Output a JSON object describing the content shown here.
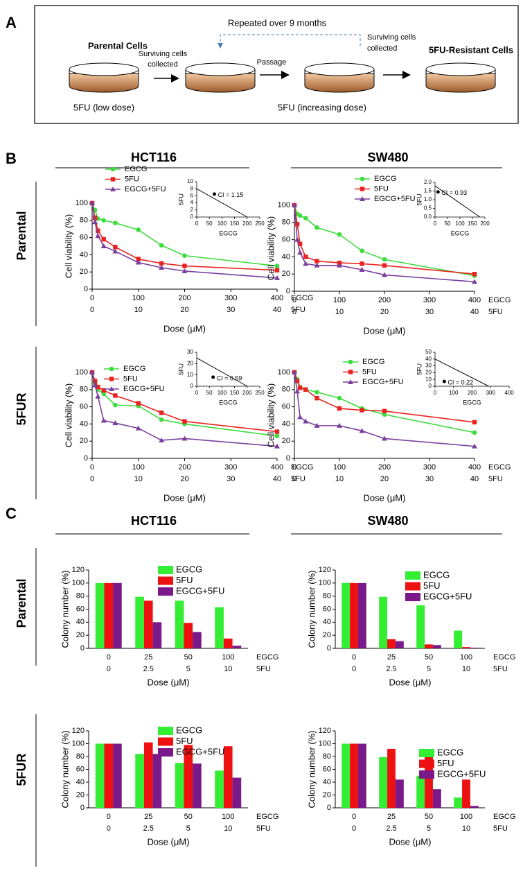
{
  "panel_a": {
    "letter": "A",
    "repeated": "Repeated over 9 months",
    "parental": "Parental Cells",
    "surviving_1a": "Surviving cells",
    "surviving_1b": "collected",
    "surviving_2a": "Surviving cells",
    "surviving_2b": "collected",
    "passage": "Passage",
    "resistant": "5FU-Resistant Cells",
    "low_dose": "5FU (low dose)",
    "increasing_dose": "5FU (increasing dose)"
  },
  "panel_b": {
    "letter": "B",
    "columns": [
      "HCT116",
      "SW480"
    ],
    "rows": [
      "Parental",
      "5FUR"
    ]
  },
  "panel_c": {
    "letter": "C",
    "columns": [
      "HCT116",
      "SW480"
    ],
    "rows": [
      "Parental",
      "5FUR"
    ]
  },
  "chart_data": [
    {
      "type": "line",
      "x_label": "Dose (μM)",
      "y_label": "Cell viability (%)",
      "x_name": "EGCG",
      "x2_name": "5FU",
      "x": [
        0,
        6.25,
        12.5,
        25,
        50,
        100,
        150,
        200,
        400
      ],
      "xlim": [
        0,
        400
      ],
      "xticks": [
        0,
        100,
        200,
        300,
        400
      ],
      "x2lim": [
        0,
        40
      ],
      "x2ticks": [
        0,
        10,
        20,
        30,
        40
      ],
      "ylim": [
        0,
        100
      ],
      "yticks": [
        0,
        20,
        40,
        60,
        80,
        100
      ],
      "series": [
        {
          "name": "EGCG",
          "color": "#3ddc3d",
          "values": [
            100,
            92,
            82,
            80,
            77,
            69,
            51,
            39,
            27
          ]
        },
        {
          "name": "5FU",
          "color": "#e8231f",
          "values": [
            100,
            83,
            68,
            58,
            49,
            35,
            30,
            27,
            22
          ]
        },
        {
          "name": "EGCG+5FU",
          "color": "#7b3f9e",
          "values": [
            100,
            78,
            62,
            50,
            44,
            31,
            25,
            21,
            13
          ]
        }
      ],
      "inset": {
        "type": "scatter",
        "x_label": "EGCG",
        "y_label": "5FU",
        "xlim": [
          0,
          250
        ],
        "xticks": [
          0,
          50,
          100,
          150,
          200,
          250
        ],
        "ylim": [
          0,
          10
        ],
        "yticks": [
          0,
          2,
          4,
          6,
          8,
          10
        ],
        "line": {
          "x": [
            0,
            200
          ],
          "y": [
            8,
            0
          ]
        },
        "x": [
          70
        ],
        "y": [
          6.5
        ],
        "annotation": "CI = 1.15"
      }
    },
    {
      "type": "line",
      "x_label": "Dose (μM)",
      "y_label": "Cell viability (%)",
      "x_name": "EGCG",
      "x2_name": "5FU",
      "x": [
        0,
        6.25,
        12.5,
        25,
        50,
        100,
        150,
        200,
        400
      ],
      "xlim": [
        0,
        400
      ],
      "xticks": [
        0,
        100,
        200,
        300,
        400
      ],
      "x2lim": [
        0,
        40
      ],
      "x2ticks": [
        0,
        10,
        20,
        30,
        40
      ],
      "ylim": [
        0,
        100
      ],
      "yticks": [
        0,
        20,
        40,
        60,
        80,
        100
      ],
      "series": [
        {
          "name": "EGCG",
          "color": "#3ddc3d",
          "values": [
            100,
            90,
            88,
            85,
            74,
            66,
            47,
            37,
            18
          ]
        },
        {
          "name": "5FU",
          "color": "#e8231f",
          "values": [
            100,
            78,
            55,
            40,
            35,
            33,
            32,
            30,
            20
          ]
        },
        {
          "name": "EGCG+5FU",
          "color": "#7b3f9e",
          "values": [
            100,
            60,
            45,
            32,
            30,
            30,
            25,
            19,
            11
          ]
        }
      ],
      "inset": {
        "type": "scatter",
        "x_label": "EGCG",
        "y_label": "5FU",
        "xlim": [
          0,
          200
        ],
        "xticks": [
          0,
          50,
          100,
          150,
          200
        ],
        "ylim": [
          0,
          2
        ],
        "yticks": [
          {
            "value": 0,
            "label": "0.0"
          },
          0.5,
          {
            "value": 1,
            "label": "1.0"
          },
          1.5,
          {
            "value": 2,
            "label": "2.0"
          }
        ],
        "line": {
          "x": [
            0,
            180
          ],
          "y": [
            1.8,
            0
          ]
        },
        "x": [
          12
        ],
        "y": [
          1.45
        ],
        "annotation": "CI = 0.93"
      }
    },
    {
      "type": "line",
      "x_label": "Dose (μM)",
      "y_label": "Cell viability (%)",
      "x_name": "EGCG",
      "x2_name": "5FU",
      "x": [
        0,
        6.25,
        12.5,
        25,
        50,
        100,
        150,
        200,
        400
      ],
      "xlim": [
        0,
        400
      ],
      "xticks": [
        0,
        100,
        200,
        300,
        400
      ],
      "x2lim": [
        0,
        40
      ],
      "x2ticks": [
        0,
        10,
        20,
        30,
        40
      ],
      "ylim": [
        0,
        100
      ],
      "yticks": [
        0,
        20,
        40,
        60,
        80,
        100
      ],
      "series": [
        {
          "name": "EGCG",
          "color": "#3ddc3d",
          "values": [
            100,
            87,
            80,
            75,
            62,
            61,
            45,
            40,
            26
          ]
        },
        {
          "name": "5FU",
          "color": "#e8231f",
          "values": [
            100,
            90,
            83,
            79,
            73,
            64,
            53,
            43,
            31
          ]
        },
        {
          "name": "EGCG+5FU",
          "color": "#7b3f9e",
          "values": [
            100,
            85,
            72,
            44,
            41,
            35,
            21,
            23,
            14
          ]
        }
      ],
      "inset": {
        "type": "scatter",
        "x_label": "EGCG",
        "y_label": "5FU",
        "xlim": [
          0,
          250
        ],
        "xticks": [
          0,
          50,
          100,
          150,
          200,
          250
        ],
        "ylim": [
          0,
          30
        ],
        "yticks": [
          0,
          10,
          20,
          30
        ],
        "line": {
          "x": [
            0,
            200
          ],
          "y": [
            25,
            0
          ]
        },
        "x": [
          65
        ],
        "y": [
          8
        ],
        "annotation": "CI = 0.59"
      }
    },
    {
      "type": "line",
      "x_label": "Dose (μM)",
      "y_label": "Cell viability (%)",
      "x_name": "EGCG",
      "x2_name": "5FU",
      "x": [
        0,
        6.25,
        12.5,
        25,
        50,
        100,
        150,
        200,
        400
      ],
      "xlim": [
        0,
        400
      ],
      "xticks": [
        0,
        100,
        200,
        300,
        400
      ],
      "x2lim": [
        0,
        40
      ],
      "x2ticks": [
        0,
        10,
        20,
        30,
        40
      ],
      "ylim": [
        0,
        100
      ],
      "yticks": [
        0,
        20,
        40,
        60,
        80,
        100
      ],
      "series": [
        {
          "name": "EGCG",
          "color": "#3ddc3d",
          "values": [
            100,
            92,
            83,
            80,
            77,
            70,
            58,
            51,
            30
          ]
        },
        {
          "name": "5FU",
          "color": "#e8231f",
          "values": [
            100,
            90,
            82,
            80,
            70,
            58,
            56,
            55,
            42
          ]
        },
        {
          "name": "EGCG+5FU",
          "color": "#7b3f9e",
          "values": [
            100,
            78,
            48,
            43,
            38,
            38,
            32,
            23,
            14
          ]
        }
      ],
      "inset": {
        "type": "scatter",
        "x_label": "EGCG",
        "y_label": "5FU",
        "xlim": [
          0,
          400
        ],
        "xticks": [
          0,
          100,
          200,
          300,
          400
        ],
        "ylim": [
          0,
          50
        ],
        "yticks": [
          0,
          10,
          20,
          30,
          40,
          50
        ],
        "line": {
          "x": [
            0,
            290
          ],
          "y": [
            40,
            0
          ]
        },
        "x": [
          50
        ],
        "y": [
          7
        ],
        "annotation": "CI = 0.22"
      }
    },
    {
      "type": "bar",
      "x_label": "Dose (μM)",
      "y_label": "Colony number (%)",
      "x_name": "EGCG",
      "x2_name": "5FU",
      "categories": [
        "0",
        "25",
        "50",
        "100"
      ],
      "categories2": [
        "0",
        "2.5",
        "5",
        "10"
      ],
      "ylim": [
        0,
        120
      ],
      "yticks": [
        0,
        20,
        40,
        60,
        80,
        100,
        120
      ],
      "series": [
        {
          "name": "EGCG",
          "color": "#33ee33",
          "values": [
            100,
            79,
            73,
            63
          ]
        },
        {
          "name": "5FU",
          "color": "#ee1111",
          "values": [
            100,
            73,
            39,
            15
          ]
        },
        {
          "name": "EGCG+5FU",
          "color": "#7a1a8a",
          "values": [
            100,
            40,
            25,
            4
          ]
        }
      ]
    },
    {
      "type": "bar",
      "x_label": "Dose (μM)",
      "y_label": "Colony number (%)",
      "x_name": "EGCG",
      "x2_name": "5FU",
      "categories": [
        "0",
        "25",
        "50",
        "100"
      ],
      "categories2": [
        "0",
        "2.5",
        "5",
        "10"
      ],
      "ylim": [
        0,
        120
      ],
      "yticks": [
        0,
        20,
        40,
        60,
        80,
        100,
        120
      ],
      "series": [
        {
          "name": "EGCG",
          "color": "#33ee33",
          "values": [
            100,
            79,
            66,
            27
          ]
        },
        {
          "name": "5FU",
          "color": "#ee1111",
          "values": [
            100,
            14,
            6,
            2
          ]
        },
        {
          "name": "EGCG+5FU",
          "color": "#7a1a8a",
          "values": [
            100,
            11,
            5,
            1
          ]
        }
      ]
    },
    {
      "type": "bar",
      "x_label": "Dose (μM)",
      "y_label": "Colony number (%)",
      "x_name": "EGCG",
      "x2_name": "5FU",
      "categories": [
        "0",
        "25",
        "50",
        "100"
      ],
      "categories2": [
        "0",
        "2.5",
        "5",
        "10"
      ],
      "ylim": [
        0,
        120
      ],
      "yticks": [
        0,
        20,
        40,
        60,
        80,
        100,
        120
      ],
      "series": [
        {
          "name": "EGCG",
          "color": "#33ee33",
          "values": [
            100,
            84,
            70,
            58
          ]
        },
        {
          "name": "5FU",
          "color": "#ee1111",
          "values": [
            100,
            102,
            98,
            96
          ]
        },
        {
          "name": "EGCG+5FU",
          "color": "#7a1a8a",
          "values": [
            100,
            84,
            69,
            47
          ]
        }
      ]
    },
    {
      "type": "bar",
      "x_label": "Dose (μM)",
      "y_label": "Colony number (%)",
      "x_name": "EGCG",
      "x2_name": "5FU",
      "categories": [
        "0",
        "25",
        "50",
        "100"
      ],
      "categories2": [
        "0",
        "2.5",
        "5",
        "10"
      ],
      "ylim": [
        0,
        120
      ],
      "yticks": [
        0,
        20,
        40,
        60,
        80,
        100,
        120
      ],
      "series": [
        {
          "name": "EGCG",
          "color": "#33ee33",
          "values": [
            100,
            79,
            50,
            16
          ]
        },
        {
          "name": "5FU",
          "color": "#ee1111",
          "values": [
            100,
            92,
            80,
            44
          ]
        },
        {
          "name": "EGCG+5FU",
          "color": "#7a1a8a",
          "values": [
            100,
            44,
            29,
            3
          ]
        }
      ]
    }
  ]
}
